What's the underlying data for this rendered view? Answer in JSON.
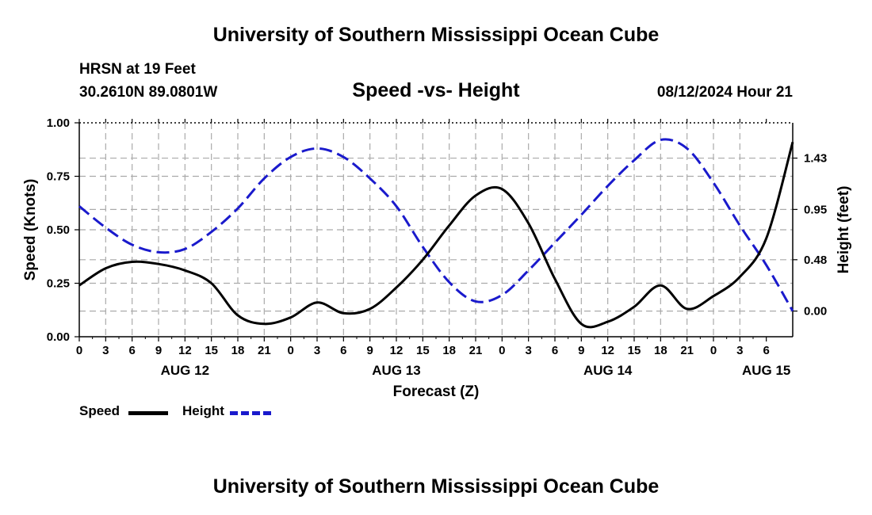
{
  "header": {
    "title": "University of Southern Mississippi Ocean Cube",
    "station": "HRSN at 19 Feet",
    "coords": "30.2610N  89.0801W",
    "subtitle": "Speed -vs- Height",
    "datetime": "08/12/2024 Hour 21"
  },
  "footer": {
    "title": "University of Southern Mississippi Ocean Cube"
  },
  "legend": {
    "speed_label": "Speed",
    "height_label": "Height"
  },
  "colors": {
    "speed": "#000000",
    "height": "#1a1acc",
    "grid": "#aaaaaa"
  },
  "chart_data": {
    "type": "line",
    "title": "Speed -vs- Height",
    "xlabel": "Forecast (Z)",
    "ylabel": "Speed (Knots)",
    "y2label": "Height (feet)",
    "x_hours_range": [
      0,
      81
    ],
    "ylim": [
      0,
      1
    ],
    "y2lim": [
      -0.24,
      1.76
    ],
    "y_ticks": [
      "0.00",
      "0.25",
      "0.50",
      "0.75",
      "1.00"
    ],
    "y2_ticks": [
      {
        "v": 0.0,
        "label": "0.00"
      },
      {
        "v": 0.48,
        "label": "0.48"
      },
      {
        "v": 0.95,
        "label": "0.95"
      },
      {
        "v": 1.43,
        "label": "1.43"
      }
    ],
    "x_ticks": [
      "0",
      "3",
      "6",
      "9",
      "12",
      "15",
      "18",
      "21",
      "0",
      "3",
      "6",
      "9",
      "12",
      "15",
      "18",
      "21",
      "0",
      "3",
      "6",
      "9",
      "12",
      "15",
      "18",
      "21",
      "0",
      "3",
      "6"
    ],
    "day_labels": [
      {
        "hour": 12,
        "label": "AUG 12"
      },
      {
        "hour": 36,
        "label": "AUG 13"
      },
      {
        "hour": 60,
        "label": "AUG 14"
      },
      {
        "hour": 78,
        "label": "AUG 15"
      }
    ],
    "series": [
      {
        "name": "Speed",
        "axis": "left",
        "x": [
          0,
          3,
          6,
          9,
          12,
          15,
          18,
          21,
          24,
          27,
          30,
          33,
          36,
          39,
          42,
          45,
          48,
          51,
          54,
          57,
          60,
          63,
          66,
          69,
          72,
          75,
          78,
          81
        ],
        "values": [
          0.24,
          0.32,
          0.35,
          0.34,
          0.31,
          0.25,
          0.1,
          0.06,
          0.09,
          0.16,
          0.11,
          0.13,
          0.23,
          0.36,
          0.52,
          0.66,
          0.69,
          0.53,
          0.27,
          0.06,
          0.07,
          0.14,
          0.24,
          0.13,
          0.19,
          0.28,
          0.46,
          0.91
        ]
      },
      {
        "name": "Height",
        "axis": "right",
        "x": [
          0,
          3,
          6,
          9,
          12,
          15,
          18,
          21,
          24,
          27,
          30,
          33,
          36,
          39,
          42,
          45,
          48,
          51,
          54,
          57,
          60,
          63,
          66,
          69,
          72,
          75,
          78,
          81
        ],
        "values": [
          0.98,
          0.78,
          0.62,
          0.55,
          0.58,
          0.74,
          0.96,
          1.24,
          1.44,
          1.52,
          1.44,
          1.24,
          0.98,
          0.6,
          0.27,
          0.09,
          0.15,
          0.38,
          0.64,
          0.9,
          1.17,
          1.41,
          1.6,
          1.52,
          1.2,
          0.8,
          0.43,
          0.0
        ]
      }
    ]
  }
}
